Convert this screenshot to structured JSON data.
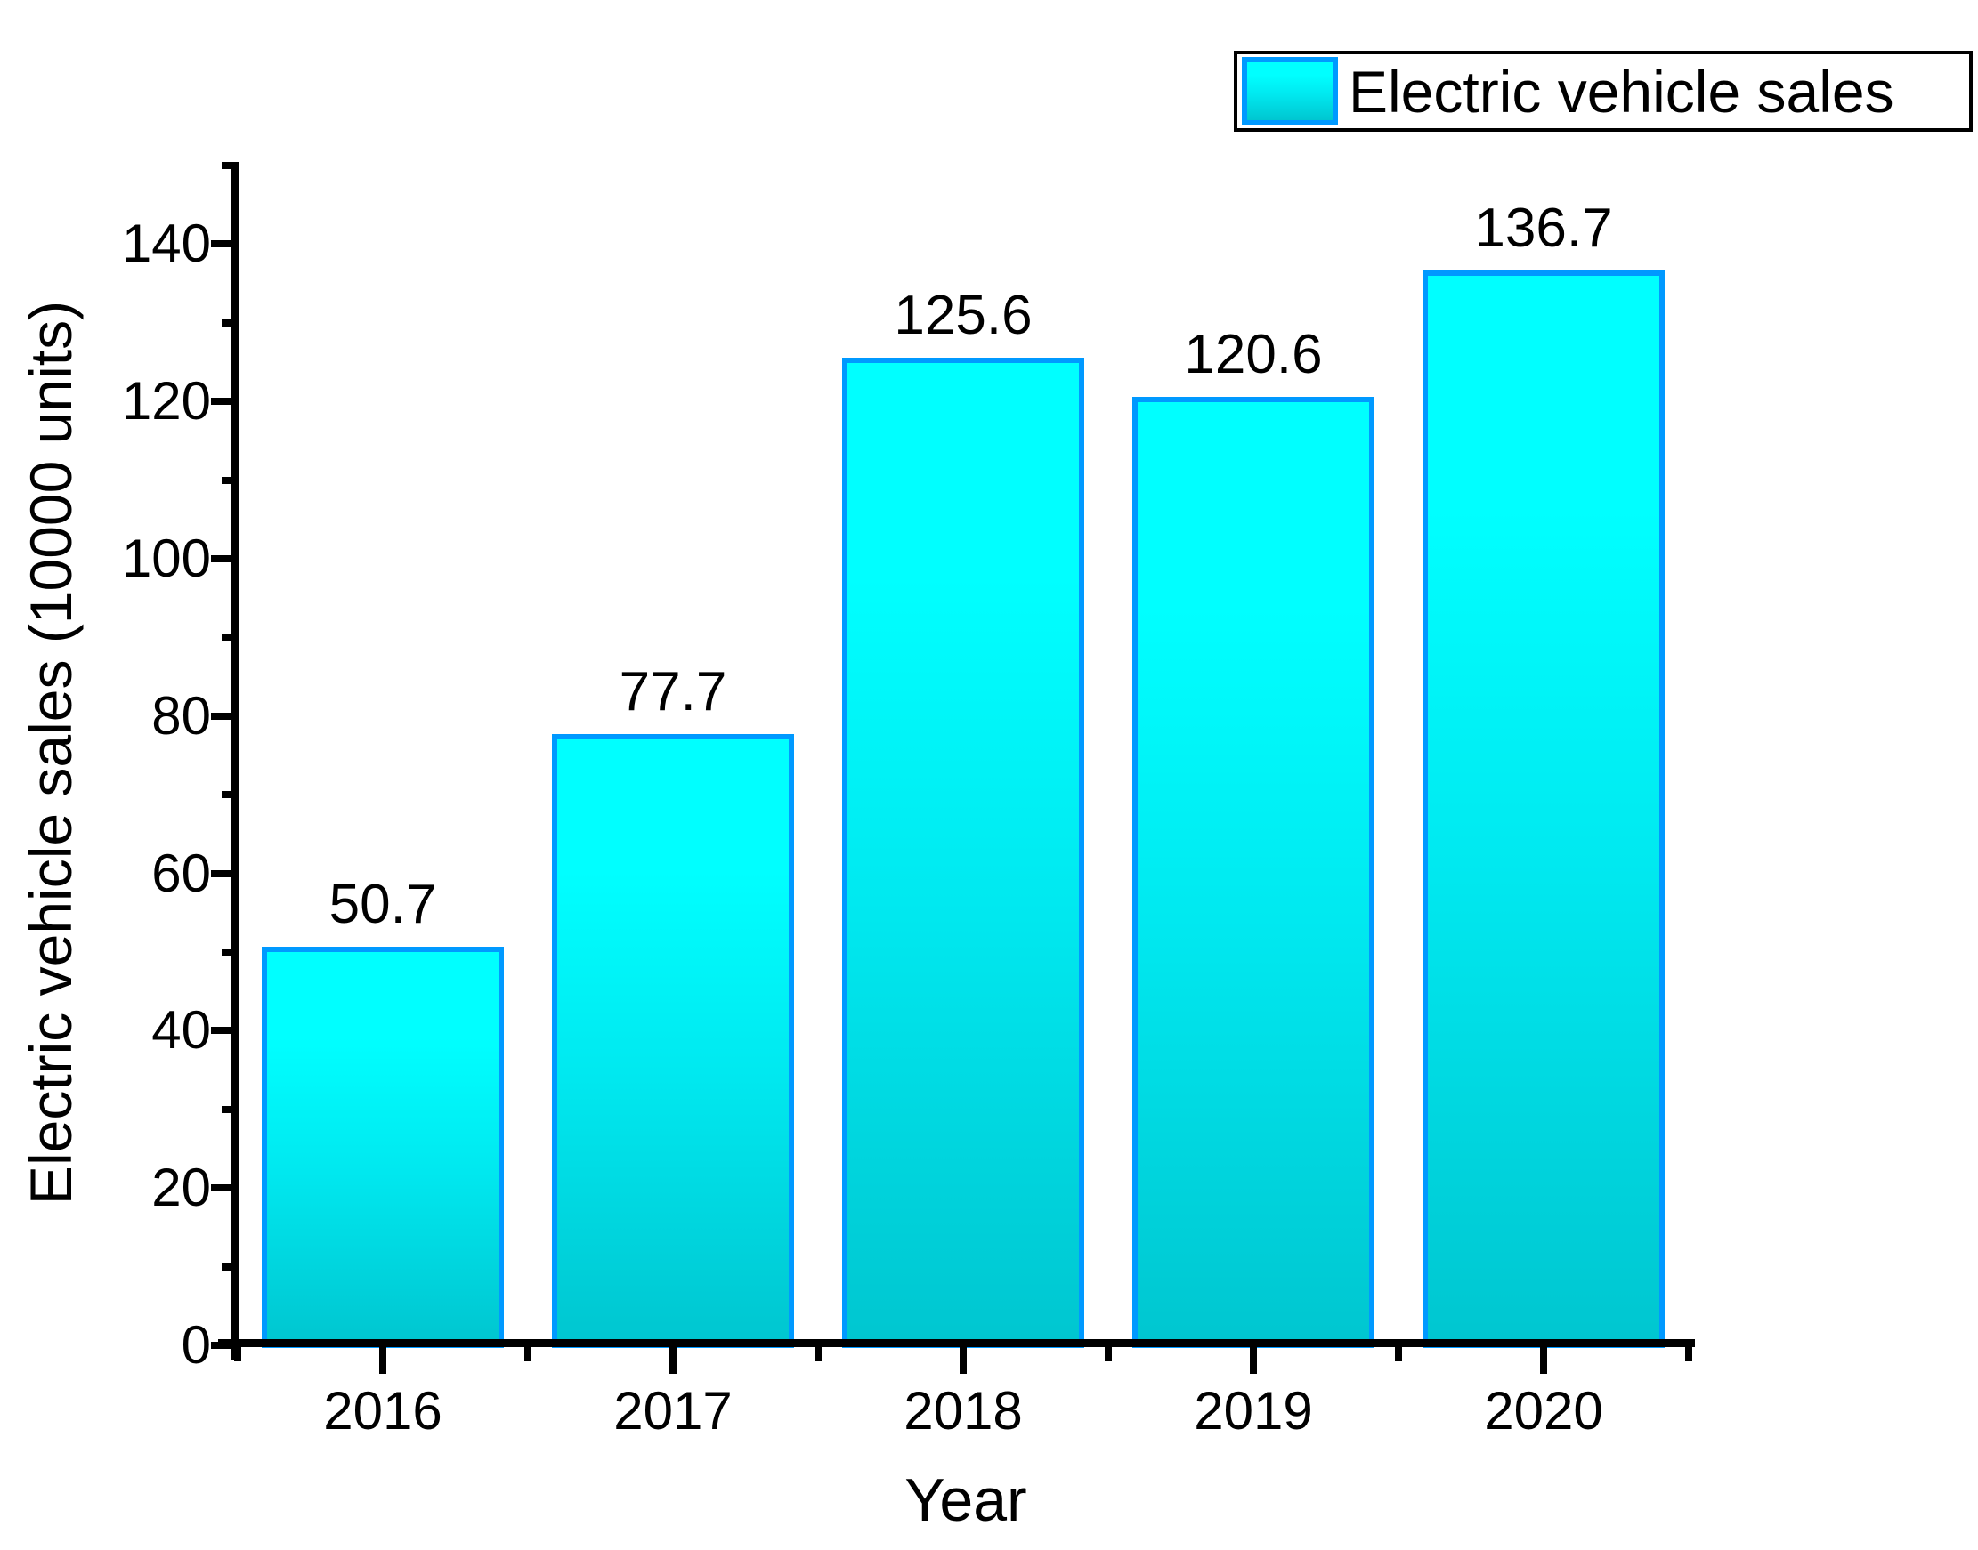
{
  "legend": {
    "label": "Electric vehicle sales"
  },
  "axes": {
    "x": {
      "title": "Year"
    },
    "y": {
      "title": "Electric vehicle sales (10000 units)"
    }
  },
  "chart_data": {
    "type": "bar",
    "categories": [
      "2016",
      "2017",
      "2018",
      "2019",
      "2020"
    ],
    "values": [
      50.7,
      77.7,
      125.6,
      120.6,
      136.7
    ],
    "bar_labels": [
      "50.7",
      "77.7",
      "125.6",
      "120.6",
      "136.7"
    ],
    "series": [
      {
        "name": "Electric vehicle sales",
        "values": [
          50.7,
          77.7,
          125.6,
          120.6,
          136.7
        ]
      }
    ],
    "title": "",
    "xlabel": "Year",
    "ylabel": "Electric vehicle sales (10000 units)",
    "ylim": [
      0,
      150
    ],
    "y_major_step": 20,
    "y_minor_step": 10,
    "y_tick_labels": [
      "0",
      "20",
      "40",
      "60",
      "80",
      "100",
      "120",
      "140"
    ],
    "grid": "off",
    "legend_position": "top-right",
    "colors": {
      "bar_fill_top": "#00FFFF",
      "bar_fill_mid": "#00E9F0",
      "bar_fill_bottom": "#00C6D0",
      "bar_border": "#0099FF",
      "axis": "#000000",
      "text": "#000000",
      "legend_border": "#000000",
      "background": "#FFFFFF"
    }
  }
}
